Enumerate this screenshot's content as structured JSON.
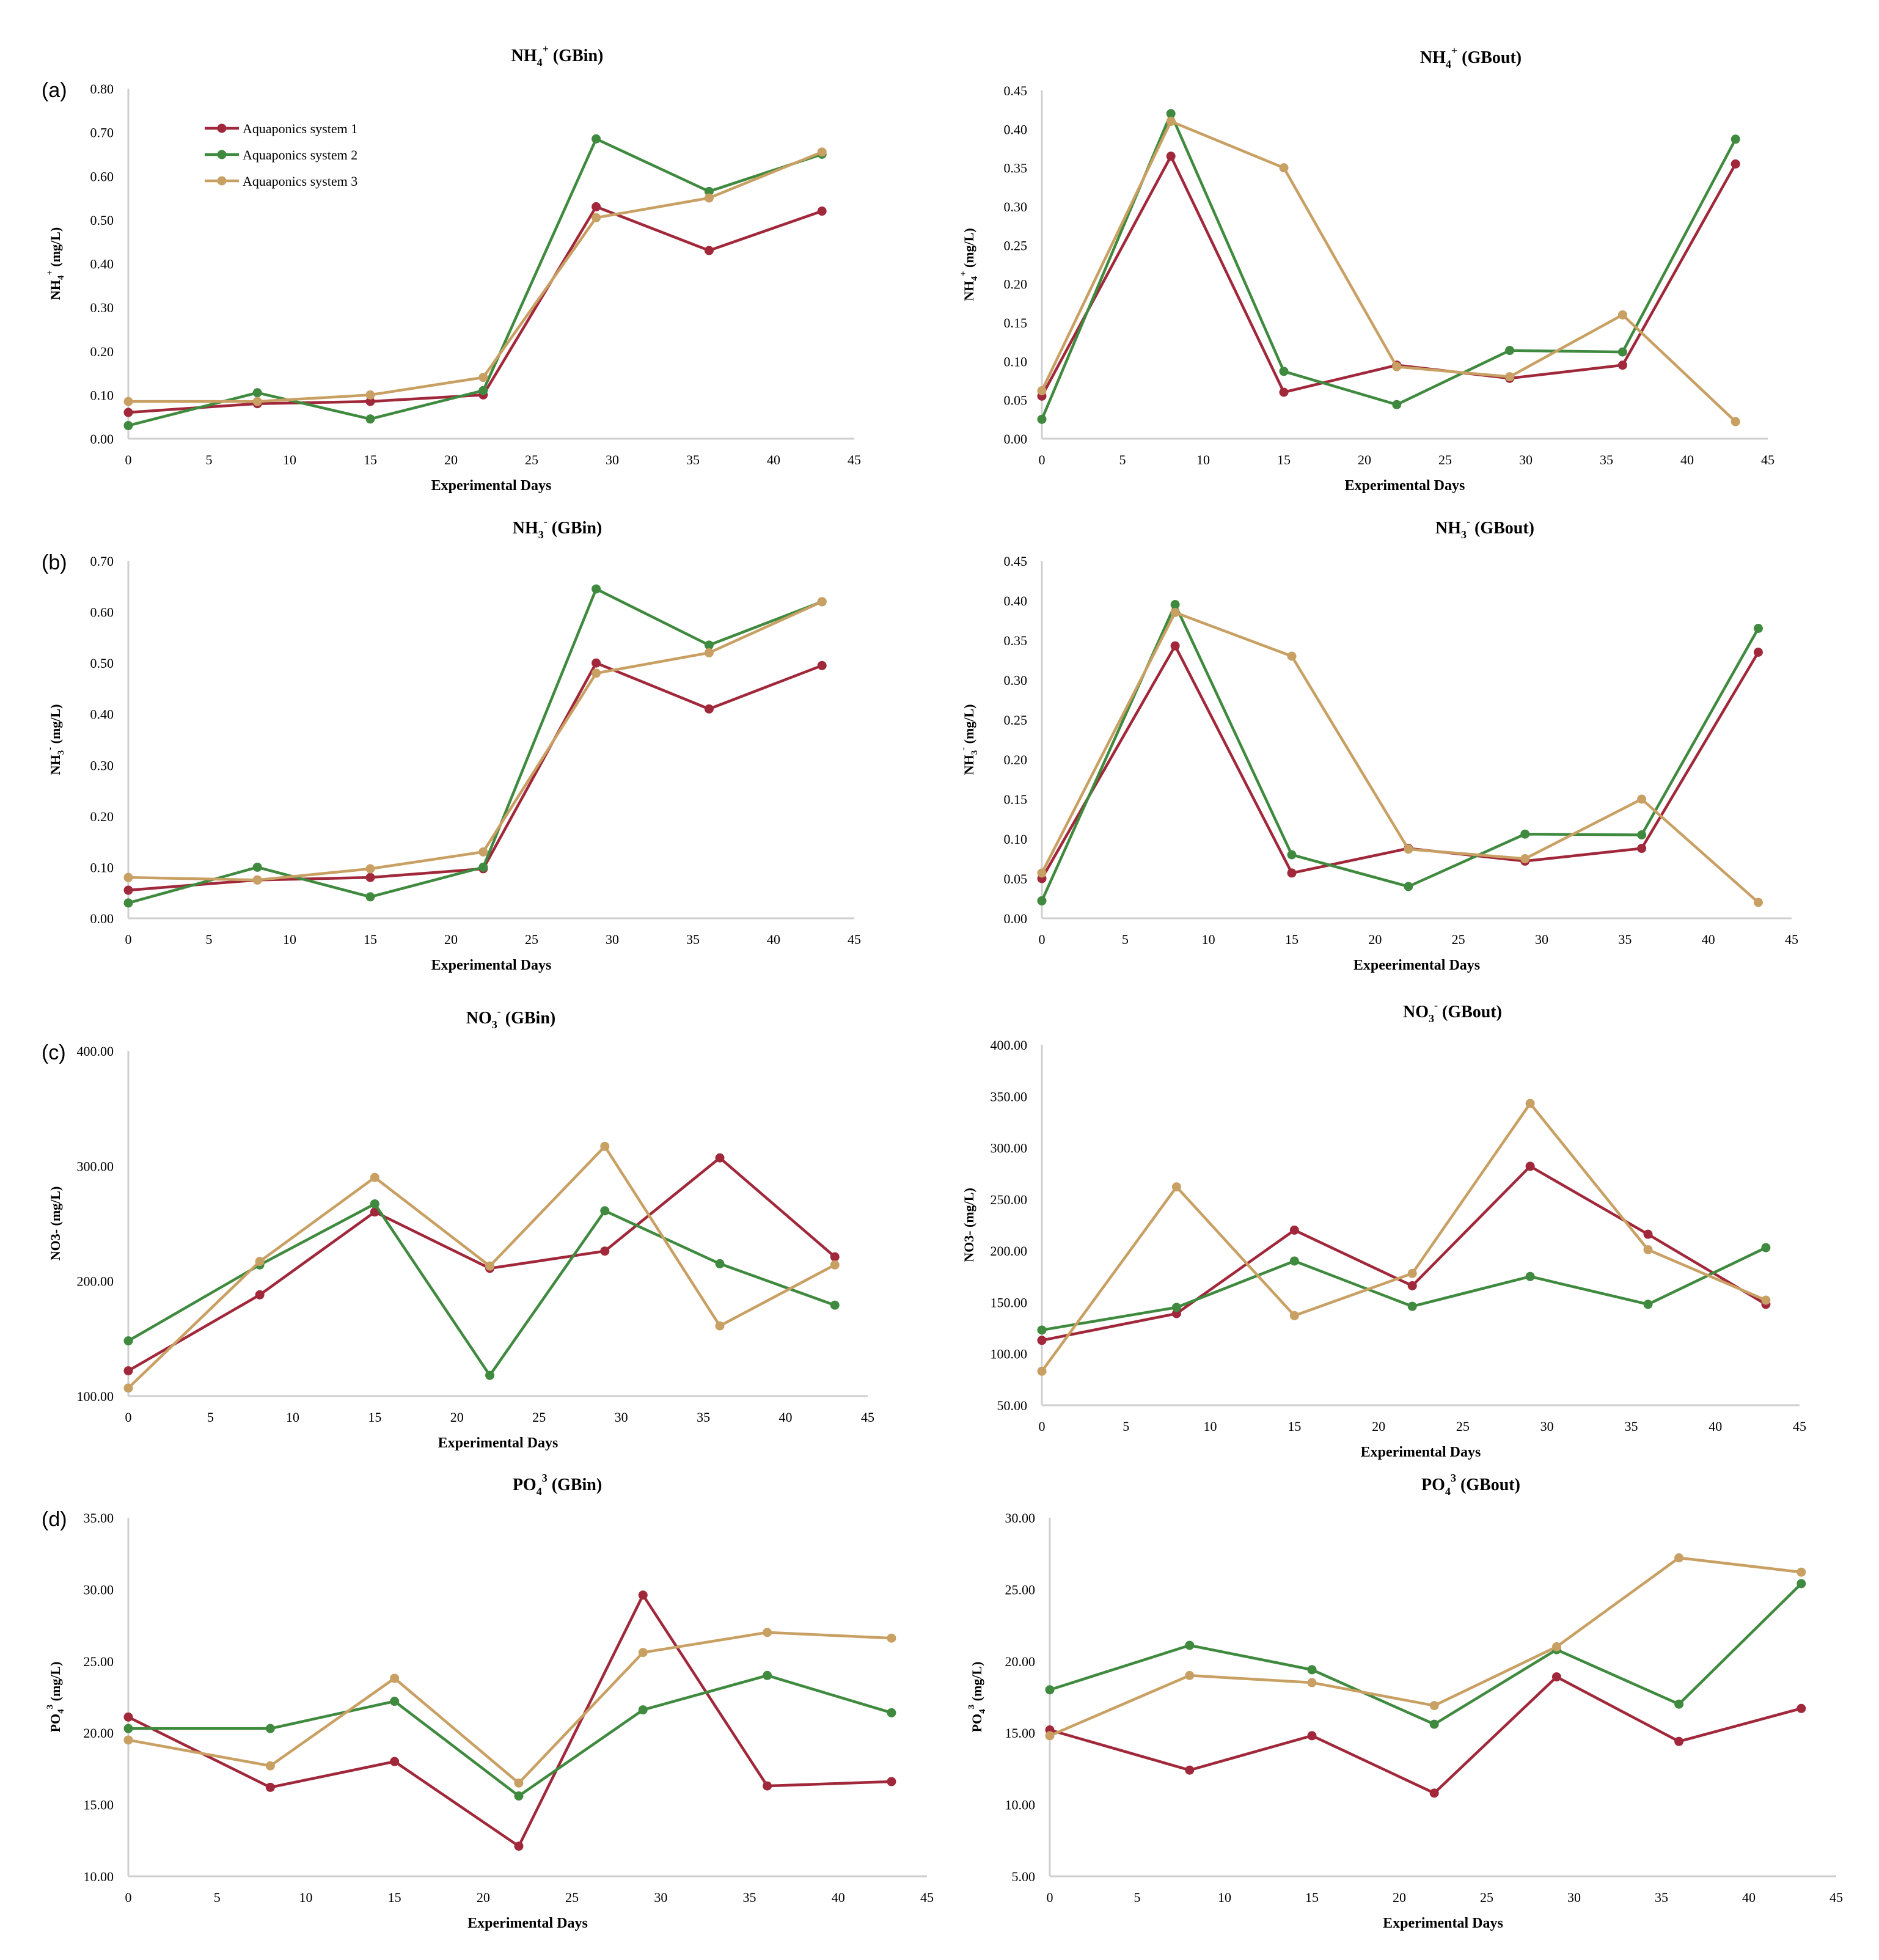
{
  "series_meta": [
    {
      "name": "Aquaponics system 1",
      "color": "#a0283a"
    },
    {
      "name": "Aquaponics system 2",
      "color": "#3f8a3f"
    },
    {
      "name": "Aquaponics system 3",
      "color": "#c9a063"
    }
  ],
  "chart_data": [
    {
      "type": "line",
      "panel": "(a)",
      "title_main": "NH",
      "title_sub": "4",
      "title_sup": "+",
      "title_rest": " (GBin)",
      "xlabel": "Experimental  Days",
      "ylabel_main": "NH",
      "ylabel_sub": "4",
      "ylabel_sup": "+",
      "ylabel_rest": " (mg/L)",
      "xlim": [
        0,
        45
      ],
      "ylim": [
        0,
        0.8
      ],
      "xticks": [
        "0",
        "5",
        "10",
        "15",
        "20",
        "25",
        "30",
        "35",
        "40",
        "45"
      ],
      "yticks": [
        "0.00",
        "0.10",
        "0.20",
        "0.30",
        "0.40",
        "0.50",
        "0.60",
        "0.70",
        "0.80"
      ],
      "legend": true,
      "legend_position": "top-left",
      "x": [
        0,
        8,
        15,
        22,
        29,
        36,
        43
      ],
      "series": [
        {
          "name": "Aquaponics system 1",
          "values": [
            0.06,
            0.08,
            0.085,
            0.1,
            0.53,
            0.43,
            0.52
          ]
        },
        {
          "name": "Aquaponics system 2",
          "values": [
            0.03,
            0.105,
            0.045,
            0.11,
            0.685,
            0.565,
            0.65
          ]
        },
        {
          "name": "Aquaponics system 3",
          "values": [
            0.085,
            0.085,
            0.1,
            0.14,
            0.505,
            0.55,
            0.655
          ]
        }
      ]
    },
    {
      "type": "line",
      "panel": "",
      "title_main": "NH",
      "title_sub": "4",
      "title_sup": "+",
      "title_rest": " (GBout)",
      "xlabel": "Experimental  Days",
      "ylabel_main": "NH",
      "ylabel_sub": "4",
      "ylabel_sup": "+",
      "ylabel_rest": " (mg/L)",
      "xlim": [
        0,
        45
      ],
      "ylim": [
        0,
        0.45
      ],
      "xticks": [
        "0",
        "5",
        "10",
        "15",
        "20",
        "25",
        "30",
        "35",
        "40",
        "45"
      ],
      "yticks": [
        "0.00",
        "0.05",
        "0.10",
        "0.15",
        "0.20",
        "0.25",
        "0.30",
        "0.35",
        "0.40",
        "0.45"
      ],
      "legend": false,
      "x": [
        0,
        8,
        15,
        22,
        29,
        36,
        43
      ],
      "series": [
        {
          "name": "Aquaponics system 1",
          "values": [
            0.055,
            0.365,
            0.06,
            0.095,
            0.078,
            0.095,
            0.355
          ]
        },
        {
          "name": "Aquaponics system 2",
          "values": [
            0.025,
            0.42,
            0.087,
            0.044,
            0.114,
            0.112,
            0.387
          ]
        },
        {
          "name": "Aquaponics system 3",
          "values": [
            0.062,
            0.41,
            0.35,
            0.093,
            0.08,
            0.16,
            0.022
          ]
        }
      ]
    },
    {
      "type": "line",
      "panel": "(b)",
      "title_main": "NH",
      "title_sub": "3",
      "title_sup": "-",
      "title_rest": " (GBin)",
      "xlabel": "Experimental  Days",
      "ylabel_main": "NH",
      "ylabel_sub": "3",
      "ylabel_sup": "-",
      "ylabel_rest": " (mg/L)",
      "xlim": [
        0,
        45
      ],
      "ylim": [
        0,
        0.7
      ],
      "xticks": [
        "0",
        "5",
        "10",
        "15",
        "20",
        "25",
        "30",
        "35",
        "40",
        "45"
      ],
      "yticks": [
        "0.00",
        "0.10",
        "0.20",
        "0.30",
        "0.40",
        "0.50",
        "0.60",
        "0.70"
      ],
      "legend": false,
      "x": [
        0,
        8,
        15,
        22,
        29,
        36,
        43
      ],
      "series": [
        {
          "name": "Aquaponics system 1",
          "values": [
            0.055,
            0.075,
            0.08,
            0.097,
            0.5,
            0.41,
            0.495
          ]
        },
        {
          "name": "Aquaponics system 2",
          "values": [
            0.03,
            0.1,
            0.042,
            0.1,
            0.645,
            0.535,
            0.62
          ]
        },
        {
          "name": "Aquaponics system 3",
          "values": [
            0.08,
            0.075,
            0.097,
            0.13,
            0.48,
            0.52,
            0.62
          ]
        }
      ]
    },
    {
      "type": "line",
      "panel": "",
      "title_main": "NH",
      "title_sub": "3",
      "title_sup": "-",
      "title_rest": " (GBout)",
      "xlabel": "Expeerimental  Days",
      "ylabel_main": "NH",
      "ylabel_sub": "3",
      "ylabel_sup": "-",
      "ylabel_rest": " (mg/L)",
      "xlim": [
        0,
        45
      ],
      "ylim": [
        0,
        0.45
      ],
      "xticks": [
        "0",
        "5",
        "10",
        "15",
        "20",
        "25",
        "30",
        "35",
        "40",
        "45"
      ],
      "yticks": [
        "0.00",
        "0.05",
        "0.10",
        "0.15",
        "0.20",
        "0.25",
        "0.30",
        "0.35",
        "0.40",
        "0.45"
      ],
      "legend": false,
      "x": [
        0,
        8,
        15,
        22,
        29,
        36,
        43
      ],
      "series": [
        {
          "name": "Aquaponics system 1",
          "values": [
            0.05,
            0.343,
            0.057,
            0.088,
            0.072,
            0.088,
            0.335
          ]
        },
        {
          "name": "Aquaponics system 2",
          "values": [
            0.022,
            0.395,
            0.08,
            0.04,
            0.106,
            0.105,
            0.365
          ]
        },
        {
          "name": "Aquaponics system 3",
          "values": [
            0.057,
            0.385,
            0.33,
            0.087,
            0.075,
            0.15,
            0.02
          ]
        }
      ]
    },
    {
      "type": "line",
      "panel": "(c)",
      "title_main": "NO",
      "title_sub": "3",
      "title_sup": "-",
      "title_rest": " (GBin)",
      "xlabel": "Experimental    Days",
      "ylabel_main": "NO3- (mg/L)",
      "ylabel_sub": "",
      "ylabel_sup": "",
      "ylabel_rest": "",
      "xlim": [
        0,
        45
      ],
      "ylim": [
        100,
        400
      ],
      "xticks": [
        "0",
        "5",
        "10",
        "15",
        "20",
        "25",
        "30",
        "35",
        "40",
        "45"
      ],
      "yticks": [
        "100.00",
        "200.00",
        "300.00",
        "400.00"
      ],
      "legend": false,
      "x": [
        0,
        8,
        15,
        22,
        29,
        36,
        43
      ],
      "series": [
        {
          "name": "Aquaponics system 1",
          "values": [
            122,
            188,
            260,
            211,
            226,
            307,
            221
          ]
        },
        {
          "name": "Aquaponics system 2",
          "values": [
            148,
            214,
            267,
            118,
            261,
            215,
            179
          ]
        },
        {
          "name": "Aquaponics system 3",
          "values": [
            107,
            217,
            290,
            213,
            317,
            161,
            214
          ]
        }
      ]
    },
    {
      "type": "line",
      "panel": "",
      "title_main": "NO",
      "title_sub": "3",
      "title_sup": "-",
      "title_rest": " (GBout)",
      "xlabel": "Experimental    Days",
      "ylabel_main": "NO3- (mg/L)",
      "ylabel_sub": "",
      "ylabel_sup": "",
      "ylabel_rest": "",
      "xlim": [
        0,
        45
      ],
      "ylim": [
        50,
        400
      ],
      "xticks": [
        "0",
        "5",
        "10",
        "15",
        "20",
        "25",
        "30",
        "35",
        "40",
        "45"
      ],
      "yticks": [
        "50.00",
        "100.00",
        "150.00",
        "200.00",
        "250.00",
        "300.00",
        "350.00",
        "400.00"
      ],
      "legend": false,
      "x": [
        0,
        8,
        15,
        22,
        29,
        36,
        43
      ],
      "series": [
        {
          "name": "Aquaponics system 1",
          "values": [
            113,
            139,
            220,
            166,
            282,
            216,
            148
          ]
        },
        {
          "name": "Aquaponics system 2",
          "values": [
            123,
            145,
            190,
            146,
            175,
            148,
            203
          ]
        },
        {
          "name": "Aquaponics system 3",
          "values": [
            83,
            262,
            137,
            178,
            343,
            201,
            152
          ]
        }
      ]
    },
    {
      "type": "line",
      "panel": "(d)",
      "title_main": "PO",
      "title_sub": "4",
      "title_sup": "3",
      "title_rest": " (GBin)",
      "xlabel": "Experimental  Days",
      "ylabel_main": "PO",
      "ylabel_sub": "4",
      "ylabel_sup": "3",
      "ylabel_rest": " (mg/L)",
      "xlim": [
        0,
        45
      ],
      "ylim": [
        10,
        35
      ],
      "xticks": [
        "0",
        "5",
        "10",
        "15",
        "20",
        "25",
        "30",
        "35",
        "40",
        "45"
      ],
      "yticks": [
        "10.00",
        "15.00",
        "20.00",
        "25.00",
        "30.00",
        "35.00"
      ],
      "legend": false,
      "x": [
        0,
        8,
        15,
        22,
        29,
        36,
        43
      ],
      "series": [
        {
          "name": "Aquaponics system 1",
          "values": [
            21.1,
            16.2,
            18.0,
            12.1,
            29.6,
            16.3,
            16.6
          ]
        },
        {
          "name": "Aquaponics system 2",
          "values": [
            20.3,
            20.3,
            22.2,
            15.6,
            21.6,
            24.0,
            21.4
          ]
        },
        {
          "name": "Aquaponics system 3",
          "values": [
            19.5,
            17.7,
            23.8,
            16.5,
            25.6,
            27.0,
            26.6
          ]
        }
      ]
    },
    {
      "type": "line",
      "panel": "",
      "title_main": "PO",
      "title_sub": "4",
      "title_sup": "3",
      "title_rest": " (GBout)",
      "xlabel": "Experimental  Days",
      "ylabel_main": "PO",
      "ylabel_sub": "4",
      "ylabel_sup": "3",
      "ylabel_rest": " (mg/L)",
      "xlim": [
        0,
        45
      ],
      "ylim": [
        5,
        30
      ],
      "xticks": [
        "0",
        "5",
        "10",
        "15",
        "20",
        "25",
        "30",
        "35",
        "40",
        "45"
      ],
      "yticks": [
        "5.00",
        "10.00",
        "15.00",
        "20.00",
        "25.00",
        "30.00"
      ],
      "legend": false,
      "x": [
        0,
        8,
        15,
        22,
        29,
        36,
        43
      ],
      "series": [
        {
          "name": "Aquaponics system 1",
          "values": [
            15.2,
            12.4,
            14.8,
            10.8,
            18.9,
            14.4,
            16.7
          ]
        },
        {
          "name": "Aquaponics system 2",
          "values": [
            18.0,
            21.1,
            19.4,
            15.6,
            20.8,
            17.0,
            25.4
          ]
        },
        {
          "name": "Aquaponics system 3",
          "values": [
            14.8,
            19.0,
            18.5,
            16.9,
            21.0,
            27.2,
            26.2
          ]
        }
      ]
    }
  ]
}
